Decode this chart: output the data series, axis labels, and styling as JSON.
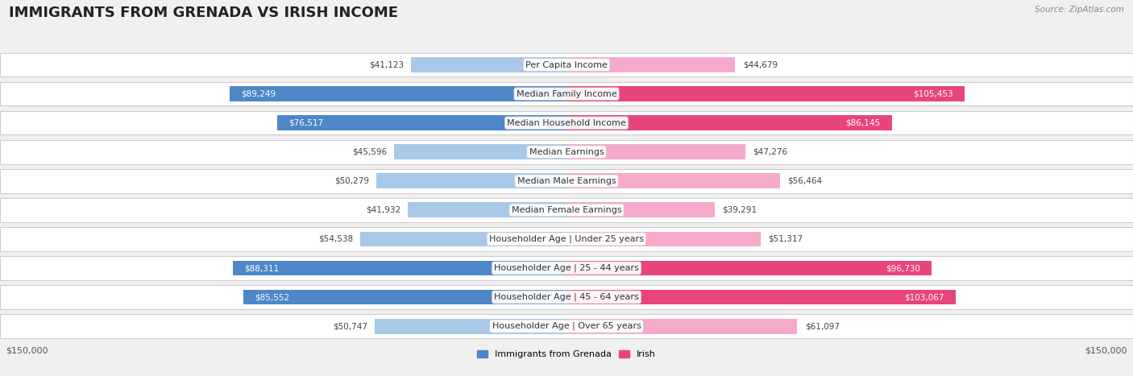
{
  "title": "IMMIGRANTS FROM GRENADA VS IRISH INCOME",
  "source": "Source: ZipAtlas.com",
  "categories": [
    "Per Capita Income",
    "Median Family Income",
    "Median Household Income",
    "Median Earnings",
    "Median Male Earnings",
    "Median Female Earnings",
    "Householder Age | Under 25 years",
    "Householder Age | 25 - 44 years",
    "Householder Age | 45 - 64 years",
    "Householder Age | Over 65 years"
  ],
  "grenada_values": [
    41123,
    89249,
    76517,
    45596,
    50279,
    41932,
    54538,
    88311,
    85552,
    50747
  ],
  "irish_values": [
    44679,
    105453,
    86145,
    47276,
    56464,
    39291,
    51317,
    96730,
    103067,
    61097
  ],
  "grenada_labels": [
    "$41,123",
    "$89,249",
    "$76,517",
    "$45,596",
    "$50,279",
    "$41,932",
    "$54,538",
    "$88,311",
    "$85,552",
    "$50,747"
  ],
  "irish_labels": [
    "$44,679",
    "$105,453",
    "$86,145",
    "$47,276",
    "$56,464",
    "$39,291",
    "$51,317",
    "$96,730",
    "$103,067",
    "$61,097"
  ],
  "grenada_color_strong": "#4D87C7",
  "grenada_color_light": "#A8C8E8",
  "irish_color_strong": "#E8457A",
  "irish_color_light": "#F5AACC",
  "grenada_threshold": 70000,
  "irish_threshold": 70000,
  "max_value": 150000,
  "x_label_left": "$150,000",
  "x_label_right": "$150,000",
  "legend_grenada": "Immigrants from Grenada",
  "legend_irish": "Irish",
  "background_color": "#f0f0f0",
  "row_background": "#ffffff",
  "row_alt_background": "#f7f7f7",
  "title_fontsize": 13,
  "source_fontsize": 7.5,
  "label_fontsize": 8,
  "category_fontsize": 8,
  "value_fontsize": 7.5
}
